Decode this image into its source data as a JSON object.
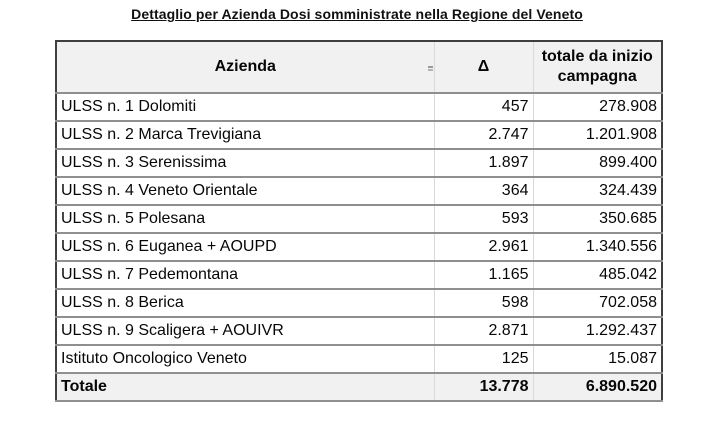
{
  "title": "Dettaglio per Azienda Dosi somministrate nella Regione del Veneto",
  "colors": {
    "header_bg": "#f1f1f1",
    "total_row_bg": "#f1f1f1",
    "outer_border": "#3f3f3f",
    "row_border": "#8f8f8f",
    "column_border": "#d9d9d9",
    "text": "#070707"
  },
  "table": {
    "columns": {
      "azienda": "Azienda",
      "delta": "Δ",
      "totale": "totale da inizio campagna"
    },
    "rows": [
      {
        "azienda": "ULSS n. 1 Dolomiti",
        "delta": "457",
        "totale": "278.908"
      },
      {
        "azienda": "ULSS n. 2 Marca Trevigiana",
        "delta": "2.747",
        "totale": "1.201.908"
      },
      {
        "azienda": "ULSS n. 3 Serenissima",
        "delta": "1.897",
        "totale": "899.400"
      },
      {
        "azienda": "ULSS n. 4 Veneto Orientale",
        "delta": "364",
        "totale": "324.439"
      },
      {
        "azienda": "ULSS n. 5 Polesana",
        "delta": "593",
        "totale": "350.685"
      },
      {
        "azienda": "ULSS n. 6 Euganea + AOUPD",
        "delta": "2.961",
        "totale": "1.340.556"
      },
      {
        "azienda": "ULSS n. 7 Pedemontana",
        "delta": "1.165",
        "totale": "485.042"
      },
      {
        "azienda": "ULSS n. 8 Berica",
        "delta": "598",
        "totale": "702.058"
      },
      {
        "azienda": "ULSS n. 9 Scaligera + AOUIVR",
        "delta": "2.871",
        "totale": "1.292.437"
      },
      {
        "azienda": "Istituto Oncologico Veneto",
        "delta": "125",
        "totale": "15.087"
      }
    ],
    "total_row": {
      "azienda": "Totale",
      "delta": "13.778",
      "totale": "6.890.520"
    }
  }
}
